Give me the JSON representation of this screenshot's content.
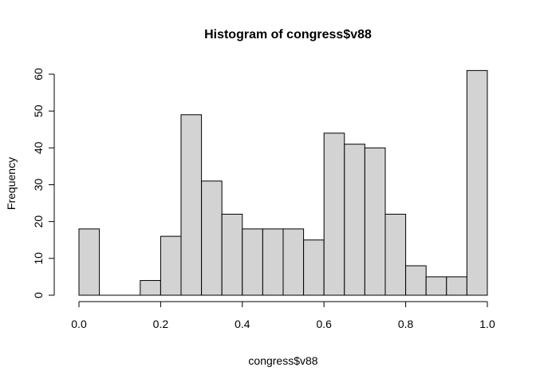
{
  "chart_data": {
    "type": "bar",
    "title": "Histogram of congress$v88",
    "xlabel": "congress$v88",
    "ylabel": "Frequency",
    "bin_edges": [
      0.0,
      0.05,
      0.1,
      0.15,
      0.2,
      0.25,
      0.3,
      0.35,
      0.4,
      0.45,
      0.5,
      0.55,
      0.6,
      0.65,
      0.7,
      0.75,
      0.8,
      0.85,
      0.9,
      0.95,
      1.0
    ],
    "values": [
      18,
      0,
      0,
      4,
      16,
      49,
      31,
      22,
      18,
      18,
      18,
      15,
      44,
      41,
      40,
      22,
      8,
      5,
      5,
      61
    ],
    "xlim": [
      0.0,
      1.0
    ],
    "ylim": [
      0,
      60
    ],
    "x_ticks": [
      "0.0",
      "0.2",
      "0.4",
      "0.6",
      "0.8",
      "1.0"
    ],
    "y_ticks": [
      "0",
      "10",
      "20",
      "30",
      "40",
      "50",
      "60"
    ],
    "colors": {
      "bar_fill": "#d3d3d3",
      "bar_stroke": "#000000"
    }
  }
}
